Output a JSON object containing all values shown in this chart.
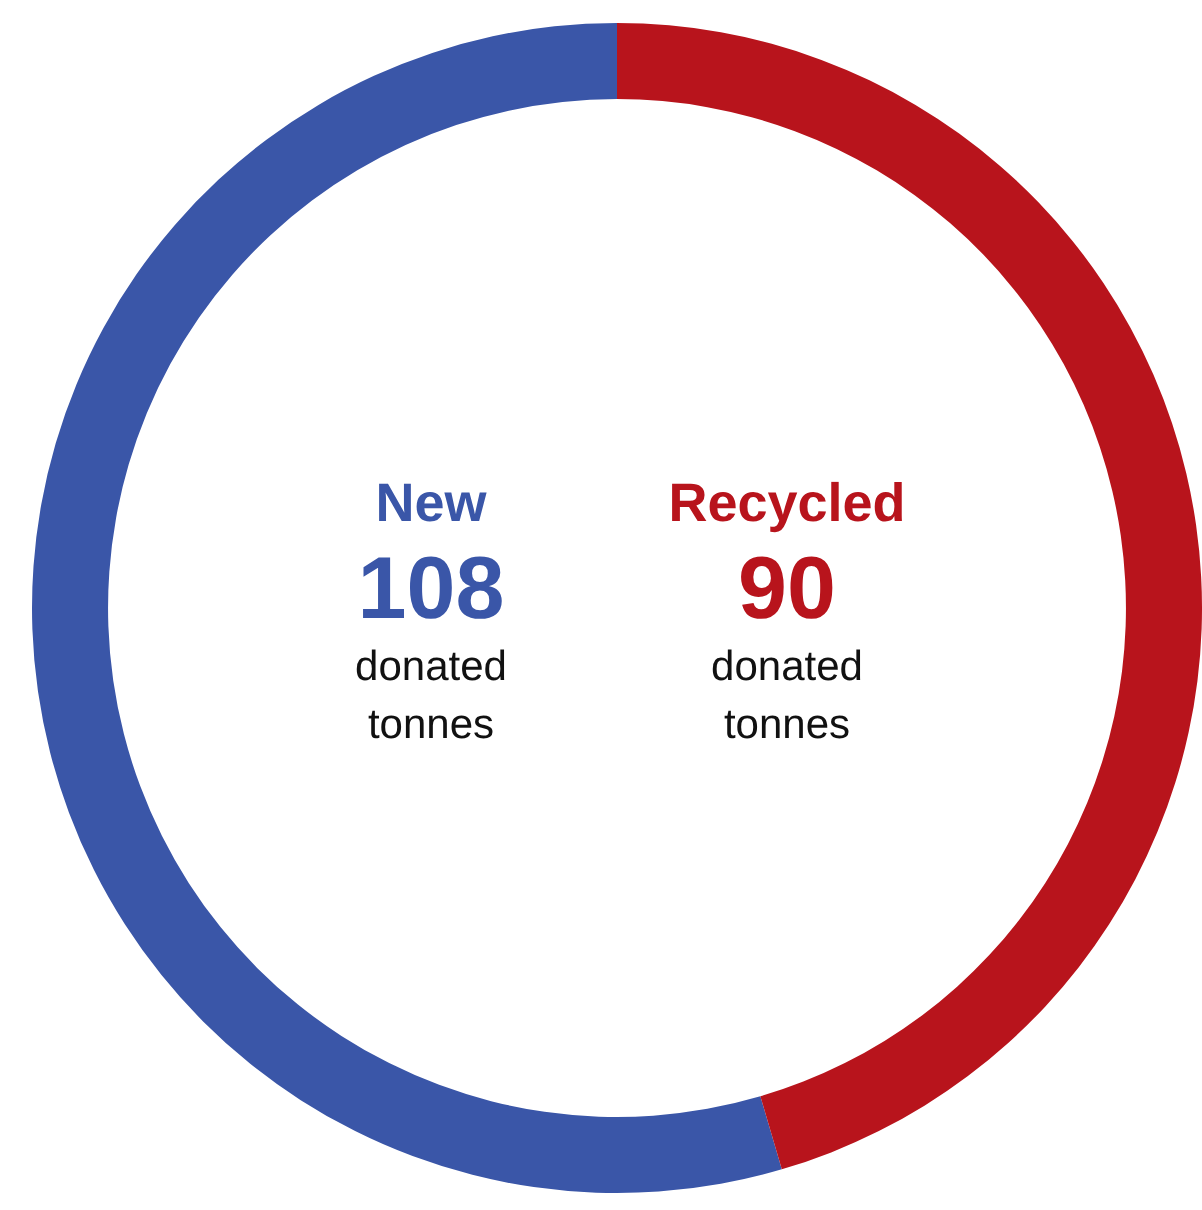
{
  "chart_data": {
    "type": "donut",
    "categories": [
      "New",
      "Recycled"
    ],
    "values": [
      108,
      90
    ],
    "colors": [
      "#3a56a8",
      "#b8141c"
    ],
    "data_labels": true,
    "legend": false,
    "annotations": [
      "donated tonnes",
      "donated tonnes"
    ]
  }
}
